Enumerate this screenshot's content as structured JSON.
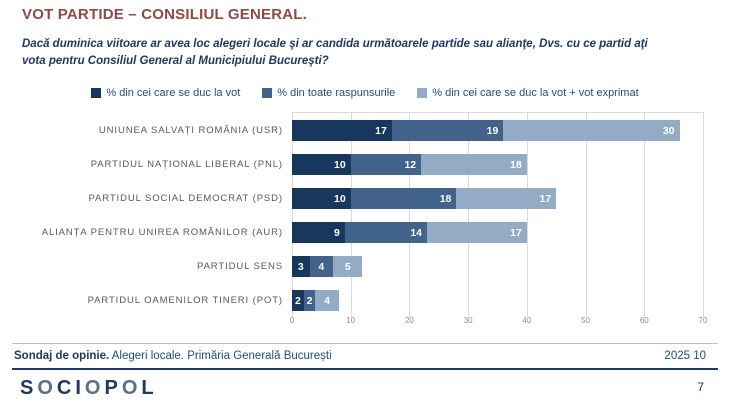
{
  "title": "VOT PARTIDE – CONSILIUL GENERAL.",
  "subtitle": "Dacă duminica viitoare ar avea loc alegeri locale şi ar candida următoarele partide sau alianţe, Dvs. cu ce partid aţi vota pentru Consiliul General al Municipiului Bucureşti?",
  "colors": {
    "title": "#8e4a44",
    "navy": "#1f3864",
    "legend_text": "#1f4e79",
    "series1": "#17375e",
    "series2": "#41638c",
    "series3": "#93abc5",
    "grid": "#d9d9d9",
    "category_label": "#595959",
    "tick_label": "#8c8c8c",
    "logo_o": "#537486"
  },
  "chart_data": {
    "type": "bar",
    "orientation": "horizontal",
    "stacked": true,
    "categories": [
      "UNIUNEA SALVAȚI ROMÂNIA (USR)",
      "PARTIDUL NAȚIONAL LIBERAL (PNL)",
      "PARTIDUL SOCIAL DEMOCRAT (PSD)",
      "ALIANȚA PENTRU UNIREA ROMÂNILOR (AUR)",
      "PARTIDUL SENS",
      "PARTIDUL OAMENILOR TINERI (POT)"
    ],
    "series": [
      {
        "name": "% din cei care se duc la vot",
        "color": "#17375e",
        "values": [
          17,
          10,
          10,
          9,
          3,
          2
        ]
      },
      {
        "name": "% din toate raspunsurile",
        "color": "#41638c",
        "values": [
          19,
          12,
          18,
          14,
          4,
          2
        ]
      },
      {
        "name": "% din cei care se duc la vot + vot exprimat",
        "color": "#93abc5",
        "values": [
          30,
          18,
          17,
          17,
          5,
          4
        ]
      }
    ],
    "xlim": [
      0,
      70
    ],
    "xticks": [
      0,
      10,
      20,
      30,
      40,
      50,
      60,
      70
    ],
    "grid": true,
    "legend_position": "top",
    "value_labels": "inside-end, white bold"
  },
  "footer": {
    "left_bold": "Sondaj de opinie.",
    "left_rest": " Alegeri locale. Primăria Generală București",
    "right": "2025 10",
    "logo": "SOCIOPOL",
    "page_number": "7"
  }
}
